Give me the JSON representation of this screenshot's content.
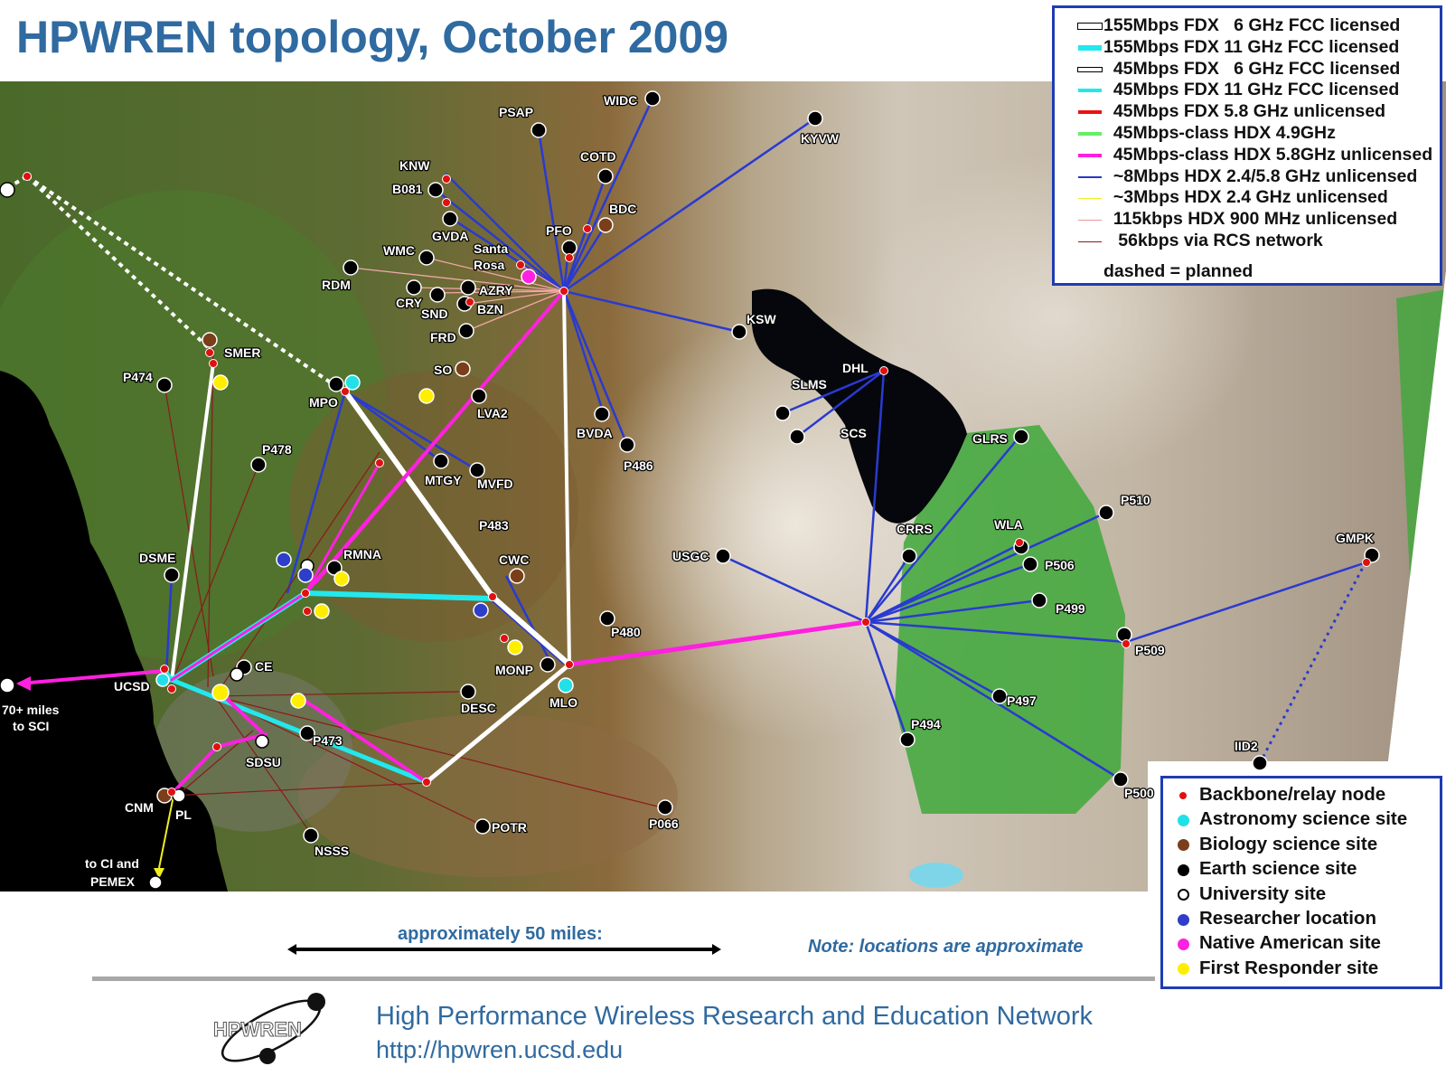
{
  "title": "HPWREN topology, October 2009",
  "colors": {
    "title": "#2f6aa0",
    "legend_border": "#1f3cb0",
    "backbone": "#e01010",
    "astronomy": "#22e0e8",
    "biology": "#7a3f1a",
    "earth": "#000000",
    "university": "#ffffff",
    "researcher": "#2f3ec8",
    "native": "#ff20e0",
    "responder": "#ffee00"
  },
  "link_legend": {
    "items": [
      {
        "label": "155Mbps FDX   6 GHz FCC licensed",
        "color": "#ffffff",
        "width": 6
      },
      {
        "label": "155Mbps FDX 11 GHz FCC licensed",
        "color": "#22e8ee",
        "width": 6
      },
      {
        "label": "  45Mbps FDX   6 GHz FCC licensed",
        "color": "#ffffff",
        "width": 4
      },
      {
        "label": "  45Mbps FDX 11 GHz FCC licensed",
        "color": "#22e8ee",
        "width": 4
      },
      {
        "label": "  45Mbps FDX 5.8 GHz unlicensed",
        "color": "#ee1111",
        "width": 4
      },
      {
        "label": "  45Mbps-class HDX 4.9GHz",
        "color": "#66ee66",
        "width": 4
      },
      {
        "label": "  45Mbps-class HDX 5.8GHz unlicensed",
        "color": "#ff20e0",
        "width": 4
      },
      {
        "label": "  ~8Mbps HDX 2.4/5.8 GHz unlicensed",
        "color": "#2838c8",
        "width": 2
      },
      {
        "label": "  ~3Mbps HDX 2.4 GHz unlicensed",
        "color": "#eeee22",
        "width": 1.5
      },
      {
        "label": "  115kbps HDX 900 MHz unlicensed",
        "color": "#e89898",
        "width": 1.2
      },
      {
        "label": "   56kbps via RCS network",
        "color": "#8b1a1a",
        "width": 1
      }
    ],
    "dashed_note": "dashed = planned"
  },
  "site_legend": {
    "items": [
      {
        "label": "Backbone/relay node",
        "color": "#e01010",
        "outline": "#e01010",
        "size": 8
      },
      {
        "label": "Astronomy science site",
        "color": "#22e0e8",
        "outline": "#22e0e8",
        "size": 13
      },
      {
        "label": "Biology science site",
        "color": "#7a3f1a",
        "outline": "#7a3f1a",
        "size": 13
      },
      {
        "label": "Earth science site",
        "color": "#000000",
        "outline": "#000000",
        "size": 13
      },
      {
        "label": "University site",
        "color": "#ffffff",
        "outline": "#000000",
        "size": 13
      },
      {
        "label": "Researcher location",
        "color": "#2f3ec8",
        "outline": "#2f3ec8",
        "size": 13
      },
      {
        "label": "Native American site",
        "color": "#ff20e0",
        "outline": "#ff20e0",
        "size": 13
      },
      {
        "label": "First Responder site",
        "color": "#ffee00",
        "outline": "#ffee00",
        "size": 13
      }
    ]
  },
  "map": {
    "nodes": [
      {
        "label": "WIDC"
      },
      {
        "label": "PSAP"
      },
      {
        "label": "KYVW"
      },
      {
        "label": "COTD"
      },
      {
        "label": "KNW"
      },
      {
        "label": "B081"
      },
      {
        "label": "BDC"
      },
      {
        "label": "GVDA"
      },
      {
        "label": "PFO"
      },
      {
        "label": "WMC"
      },
      {
        "label": "Santa"
      },
      {
        "label": "Rosa"
      },
      {
        "label": "RDM"
      },
      {
        "label": "AZRY"
      },
      {
        "label": "CRY"
      },
      {
        "label": "BZN"
      },
      {
        "label": "SND"
      },
      {
        "label": "FRD"
      },
      {
        "label": "KSW"
      },
      {
        "label": "SMER"
      },
      {
        "label": "DHL"
      },
      {
        "label": "P474"
      },
      {
        "label": "SO"
      },
      {
        "label": "MPO"
      },
      {
        "label": "SLMS"
      },
      {
        "label": "LVA2"
      },
      {
        "label": "SCS"
      },
      {
        "label": "BVDA"
      },
      {
        "label": "GLRS"
      },
      {
        "label": "P478"
      },
      {
        "label": "P486"
      },
      {
        "label": "MTGY"
      },
      {
        "label": "MVFD"
      },
      {
        "label": "P510"
      },
      {
        "label": "P483"
      },
      {
        "label": "CRRS"
      },
      {
        "label": "WLA"
      },
      {
        "label": "GMPK"
      },
      {
        "label": "USGC"
      },
      {
        "label": "DSME"
      },
      {
        "label": "RMNA"
      },
      {
        "label": "CWC"
      },
      {
        "label": "P506"
      },
      {
        "label": "P499"
      },
      {
        "label": "P480"
      },
      {
        "label": "P509"
      },
      {
        "label": "CE"
      },
      {
        "label": "MONP"
      },
      {
        "label": "UCSD"
      },
      {
        "label": "MLO"
      },
      {
        "label": "P497"
      },
      {
        "label": "DESC"
      },
      {
        "label": "P494"
      },
      {
        "label": "P473"
      },
      {
        "label": "IID2"
      },
      {
        "label": "SDSU"
      },
      {
        "label": "P500"
      },
      {
        "label": "CNM"
      },
      {
        "label": "PL"
      },
      {
        "label": "POTR"
      },
      {
        "label": "P066"
      },
      {
        "label": "NSSS"
      }
    ],
    "side_labels": [
      "70+ miles",
      "to SCI",
      "to CI and",
      "PEMEX"
    ]
  },
  "scale_label": "approximately 50 miles:",
  "note": "Note: locations are approximate",
  "logo_text": "HPWREN",
  "footer": {
    "org": "High Performance Wireless Research and Education Network",
    "url": "http://hpwren.ucsd.edu"
  }
}
